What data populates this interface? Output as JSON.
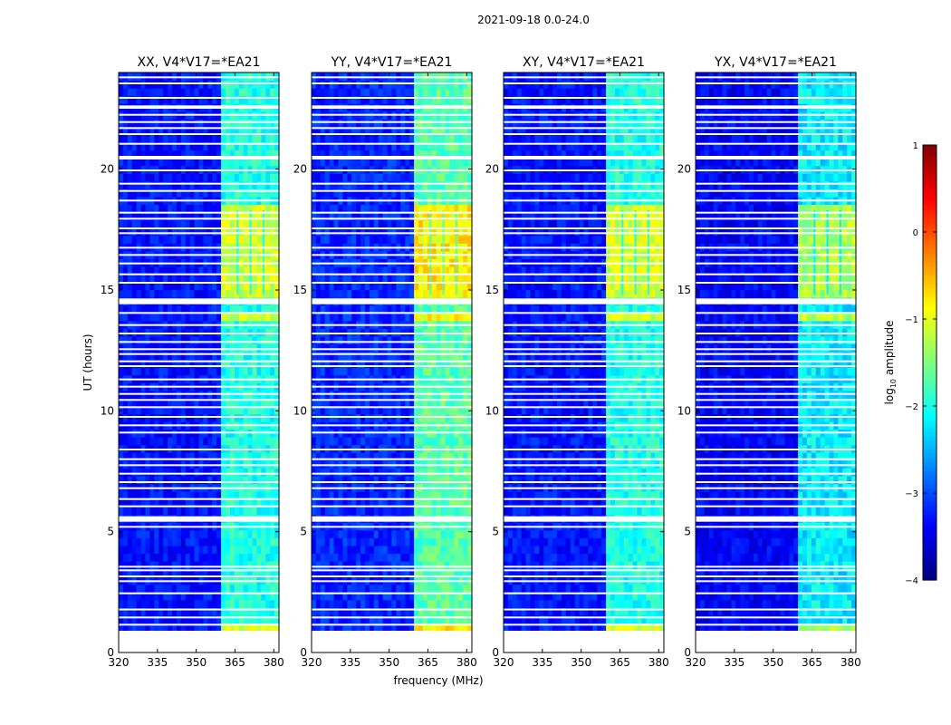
{
  "chart_data": {
    "type": "heatmap",
    "suptitle": "2021-09-18 0.0-24.0",
    "xlabel": "frequency (MHz)",
    "ylabel": "UT (hours)",
    "xlim": [
      320,
      382
    ],
    "ylim": [
      0,
      24
    ],
    "xticks": [
      320,
      335,
      350,
      365,
      380
    ],
    "yticks": [
      0,
      5,
      10,
      15,
      20
    ],
    "colorbar": {
      "label": "log10 amplitude",
      "label_base": "log",
      "label_sub": "10",
      "label_rest": " amplitude",
      "range": [
        -4,
        1
      ],
      "ticks": [
        1,
        0,
        -1,
        -2,
        -3,
        -4
      ],
      "tick_labels": [
        "1",
        "0",
        "−1",
        "−2",
        "−3",
        "−4"
      ],
      "colormap": "jet"
    },
    "panels": [
      {
        "title": "XX, V4*V17=*EA21",
        "pol": "XX",
        "background_level": -3.3,
        "rfi_level": -2.0,
        "strong_level": -1.1
      },
      {
        "title": "YY, V4*V17=*EA21",
        "pol": "YY",
        "background_level": -3.2,
        "rfi_level": -1.7,
        "strong_level": -0.8
      },
      {
        "title": "XY, V4*V17=*EA21",
        "pol": "XY",
        "background_level": -3.3,
        "rfi_level": -2.0,
        "strong_level": -1.1
      },
      {
        "title": "YX, V4*V17=*EA21",
        "pol": "YX",
        "background_level": -3.4,
        "rfi_level": -2.2,
        "strong_level": -1.3
      }
    ],
    "data_start_hour": 0.9,
    "data_end_hour": 24,
    "rfi_band_mhz": [
      361,
      381
    ],
    "rfi_subband_edges_mhz": [
      361,
      366,
      371,
      376,
      381
    ],
    "strong_rfi_hours": [
      [
        14.8,
        18.3
      ],
      [
        1.0,
        1.1
      ],
      [
        13.8,
        13.9
      ]
    ],
    "flagged_hours": [
      1.15,
      1.45,
      1.78,
      2.45,
      2.95,
      3.15,
      3.4,
      3.55,
      5.2,
      5.45,
      5.6,
      6.05,
      6.35,
      6.8,
      7.05,
      7.4,
      7.75,
      8.0,
      8.4,
      9.1,
      9.4,
      9.75,
      10.15,
      10.45,
      10.7,
      11.0,
      11.3,
      11.85,
      12.05,
      12.35,
      12.55,
      12.85,
      13.2,
      13.55,
      14.05,
      14.45,
      14.55,
      15.3,
      15.65,
      16.1,
      16.45,
      16.75,
      17.35,
      17.55,
      17.95,
      18.2,
      18.7,
      19.1,
      19.4,
      19.95,
      20.5,
      21.05,
      21.45,
      21.7,
      21.95,
      22.25,
      22.6,
      22.95,
      23.55,
      23.8
    ],
    "thick_flagged_hours": [
      [
        5.45,
        5.6
      ],
      [
        14.45,
        14.65
      ],
      [
        20.4,
        20.55
      ],
      [
        22.5,
        22.6
      ]
    ]
  }
}
